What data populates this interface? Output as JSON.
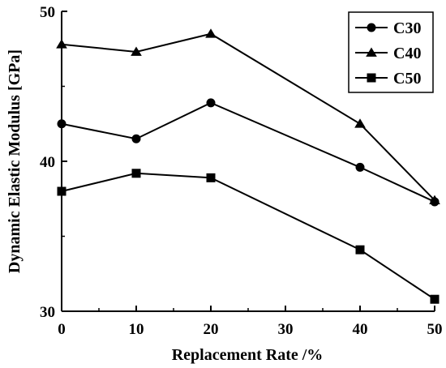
{
  "chart_data": {
    "type": "line",
    "xlabel": "Replacement Rate /%",
    "ylabel": "Dynamic Elastic Modulus [GPa]",
    "xlim": [
      0,
      50
    ],
    "ylim": [
      30,
      50
    ],
    "x_ticks": [
      "0",
      "10",
      "20",
      "30",
      "40",
      "50"
    ],
    "y_ticks": [
      "30",
      "40",
      "50"
    ],
    "x": [
      0,
      10,
      20,
      40,
      50
    ],
    "series": [
      {
        "name": "C30",
        "marker": "circle",
        "values": [
          42.5,
          41.5,
          43.9,
          39.6,
          37.3
        ]
      },
      {
        "name": "C40",
        "marker": "triangle",
        "values": [
          47.8,
          47.3,
          48.5,
          42.5,
          37.4
        ]
      },
      {
        "name": "C50",
        "marker": "square",
        "values": [
          38.0,
          39.2,
          38.9,
          34.1,
          30.8
        ]
      }
    ],
    "legend_position": "top-right",
    "grid": false,
    "color": "#000000"
  }
}
